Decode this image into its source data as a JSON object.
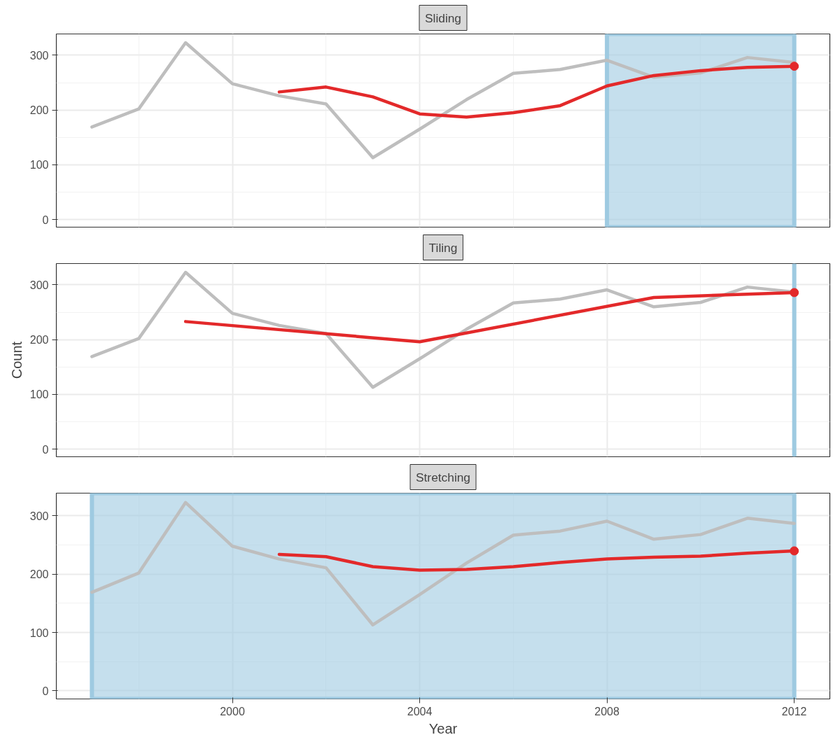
{
  "chart_data": [
    {
      "type": "line",
      "title": "Sliding",
      "x": [
        1997,
        1998,
        1999,
        2000,
        2001,
        2002,
        2003,
        2004,
        2005,
        2006,
        2007,
        2008,
        2009,
        2010,
        2011,
        2012
      ],
      "series": [
        {
          "color": "#bebebe",
          "values": [
            169,
            202,
            323,
            248,
            226,
            211,
            113,
            165,
            219,
            267,
            274,
            291,
            260,
            268,
            296,
            287
          ]
        },
        {
          "color": "#e3292a",
          "x": [
            2001,
            2002,
            2003,
            2004,
            2005,
            2006,
            2007,
            2008,
            2009,
            2010,
            2011,
            2012
          ],
          "values": [
            233,
            242,
            224,
            193,
            187,
            195,
            208,
            244,
            263,
            272,
            278,
            280
          ]
        },
        {
          "type": "scatter",
          "marker": "circle",
          "color": "#e3292a",
          "x": [
            2012
          ],
          "values": [
            280
          ]
        }
      ],
      "bands": [
        {
          "axis": "x",
          "from": 2008,
          "to": 2012,
          "color": "#9ecae1"
        }
      ],
      "xlim": [
        1996.24,
        2012.76
      ],
      "ylim": [
        -14,
        339
      ],
      "xticks": [
        2000,
        2004,
        2008,
        2012
      ],
      "yticks": [
        0,
        100,
        200,
        300
      ],
      "grid": true,
      "tick_labels": "y"
    },
    {
      "type": "line",
      "title": "Tiling",
      "ylabel": "Count",
      "x": [
        1997,
        1998,
        1999,
        2000,
        2001,
        2002,
        2003,
        2004,
        2005,
        2006,
        2007,
        2008,
        2009,
        2010,
        2011,
        2012
      ],
      "series": [
        {
          "color": "#bebebe",
          "values": [
            169,
            202,
            323,
            248,
            226,
            211,
            113,
            165,
            219,
            267,
            274,
            291,
            260,
            268,
            296,
            287
          ]
        },
        {
          "color": "#e3292a",
          "x": [
            1999,
            2004,
            2009,
            2012
          ],
          "values": [
            233,
            196,
            277,
            286
          ]
        },
        {
          "type": "scatter",
          "marker": "circle",
          "color": "#e3292a",
          "x": [
            2012
          ],
          "values": [
            286
          ]
        }
      ],
      "ref_lines": [
        {
          "axis": "x",
          "value": 2012,
          "color": "#9ecae1"
        }
      ],
      "xlim": [
        1996.24,
        2012.76
      ],
      "ylim": [
        -14,
        339
      ],
      "xticks": [
        2000,
        2004,
        2008,
        2012
      ],
      "yticks": [
        0,
        100,
        200,
        300
      ],
      "grid": true,
      "tick_labels": "y"
    },
    {
      "type": "line",
      "title": "Stretching",
      "xlabel": "Year",
      "x": [
        1997,
        1998,
        1999,
        2000,
        2001,
        2002,
        2003,
        2004,
        2005,
        2006,
        2007,
        2008,
        2009,
        2010,
        2011,
        2012
      ],
      "series": [
        {
          "color": "#bebebe",
          "values": [
            169,
            202,
            323,
            248,
            226,
            211,
            113,
            165,
            219,
            267,
            274,
            291,
            260,
            268,
            296,
            287
          ]
        },
        {
          "color": "#e3292a",
          "x": [
            2001,
            2002,
            2003,
            2004,
            2005,
            2006,
            2007,
            2008,
            2009,
            2010,
            2011,
            2012
          ],
          "values": [
            234,
            230,
            213,
            207,
            208,
            213,
            220,
            226,
            229,
            231,
            236,
            240
          ]
        },
        {
          "type": "scatter",
          "marker": "circle",
          "color": "#e3292a",
          "x": [
            2012
          ],
          "values": [
            240
          ]
        }
      ],
      "bands": [
        {
          "axis": "x",
          "from": 1997,
          "to": 2012,
          "color": "#9ecae1"
        }
      ],
      "xlim": [
        1996.24,
        2012.76
      ],
      "ylim": [
        -14,
        339
      ],
      "xticks": [
        2000,
        2004,
        2008,
        2012
      ],
      "yticks": [
        0,
        100,
        200,
        300
      ],
      "grid": true
    }
  ]
}
